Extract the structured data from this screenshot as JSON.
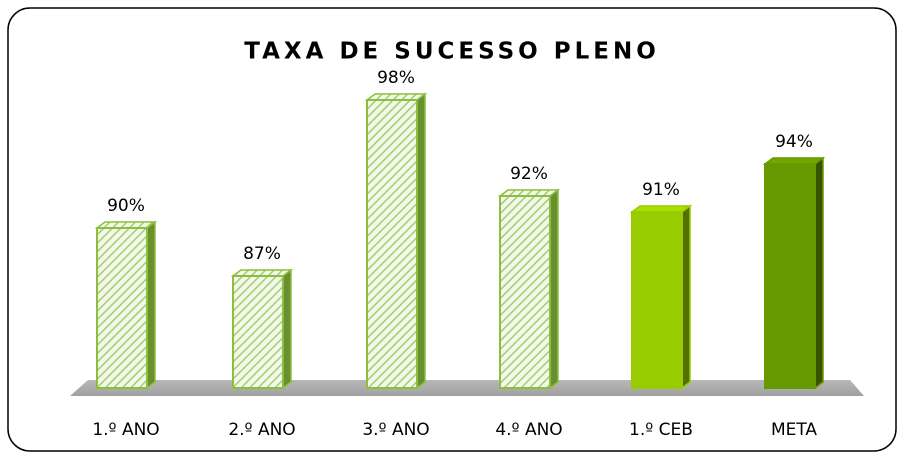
{
  "chart_data": {
    "type": "bar3d",
    "title": "TAXA DE SUCESSO PLENO",
    "categories": [
      "1.º ANO",
      "2.º ANO",
      "3.º ANO",
      "4.º ANO",
      "1.º CEB",
      "META"
    ],
    "values": [
      90,
      87,
      98,
      92,
      91,
      94
    ],
    "value_labels": [
      "90%",
      "87%",
      "98%",
      "92%",
      "91%",
      "94%"
    ],
    "colors": [
      "#8cbf3f",
      "#8cbf3f",
      "#8cbf3f",
      "#8cbf3f",
      "#99cc00",
      "#669900"
    ],
    "hatch": [
      true,
      true,
      true,
      true,
      false,
      false
    ],
    "ylim": [
      80,
      100
    ]
  }
}
